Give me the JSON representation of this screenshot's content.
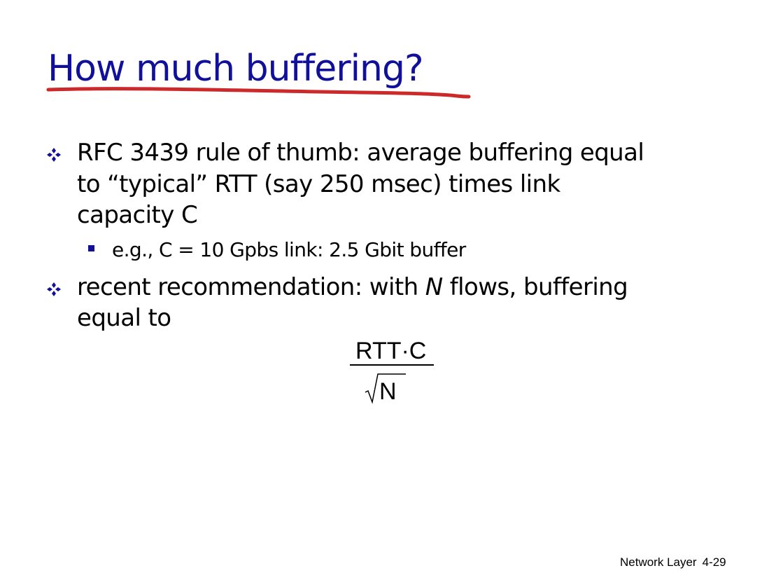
{
  "slide": {
    "title": "How much buffering?",
    "colors": {
      "title": "#10109a",
      "underline": "#cc2a2a",
      "bullet": "#10109a",
      "text": "#000000"
    },
    "bullets": [
      {
        "lines": [
          "RFC 3439 rule of thumb: average buffering equal",
          "to “typical” RTT (say 250 msec) times link",
          "capacity C"
        ],
        "sub_bullets": [
          "e.g., C = 10 Gpbs link: 2.5 Gbit buffer"
        ]
      },
      {
        "line1_prefix": "recent recommendation: with ",
        "line1_italic": "N",
        "line1_suffix": " flows, buffering",
        "line2": "equal to"
      }
    ],
    "formula": {
      "numerator": "RTT·C",
      "denominator": "N"
    },
    "footer": {
      "section": "Network Layer",
      "page": "4-29"
    }
  }
}
